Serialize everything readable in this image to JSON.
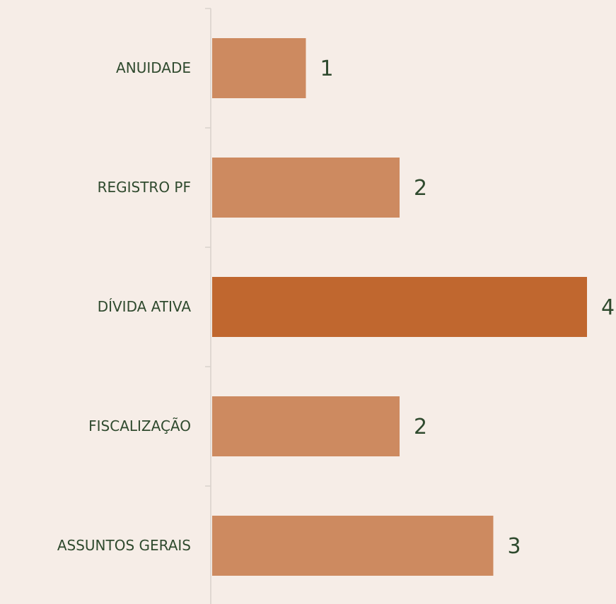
{
  "chart_data": {
    "type": "bar",
    "orientation": "horizontal",
    "categories": [
      "ANUIDADE",
      "REGISTRO PF",
      "DÍVIDA ATIVA",
      "FISCALIZAÇÃO",
      "ASSUNTOS GERAIS"
    ],
    "values": [
      1,
      2,
      4,
      2,
      3
    ],
    "colors": [
      "#cd8a60",
      "#cd8a60",
      "#c0672f",
      "#cd8a60",
      "#cd8a60"
    ],
    "xlim": [
      0,
      4
    ]
  }
}
